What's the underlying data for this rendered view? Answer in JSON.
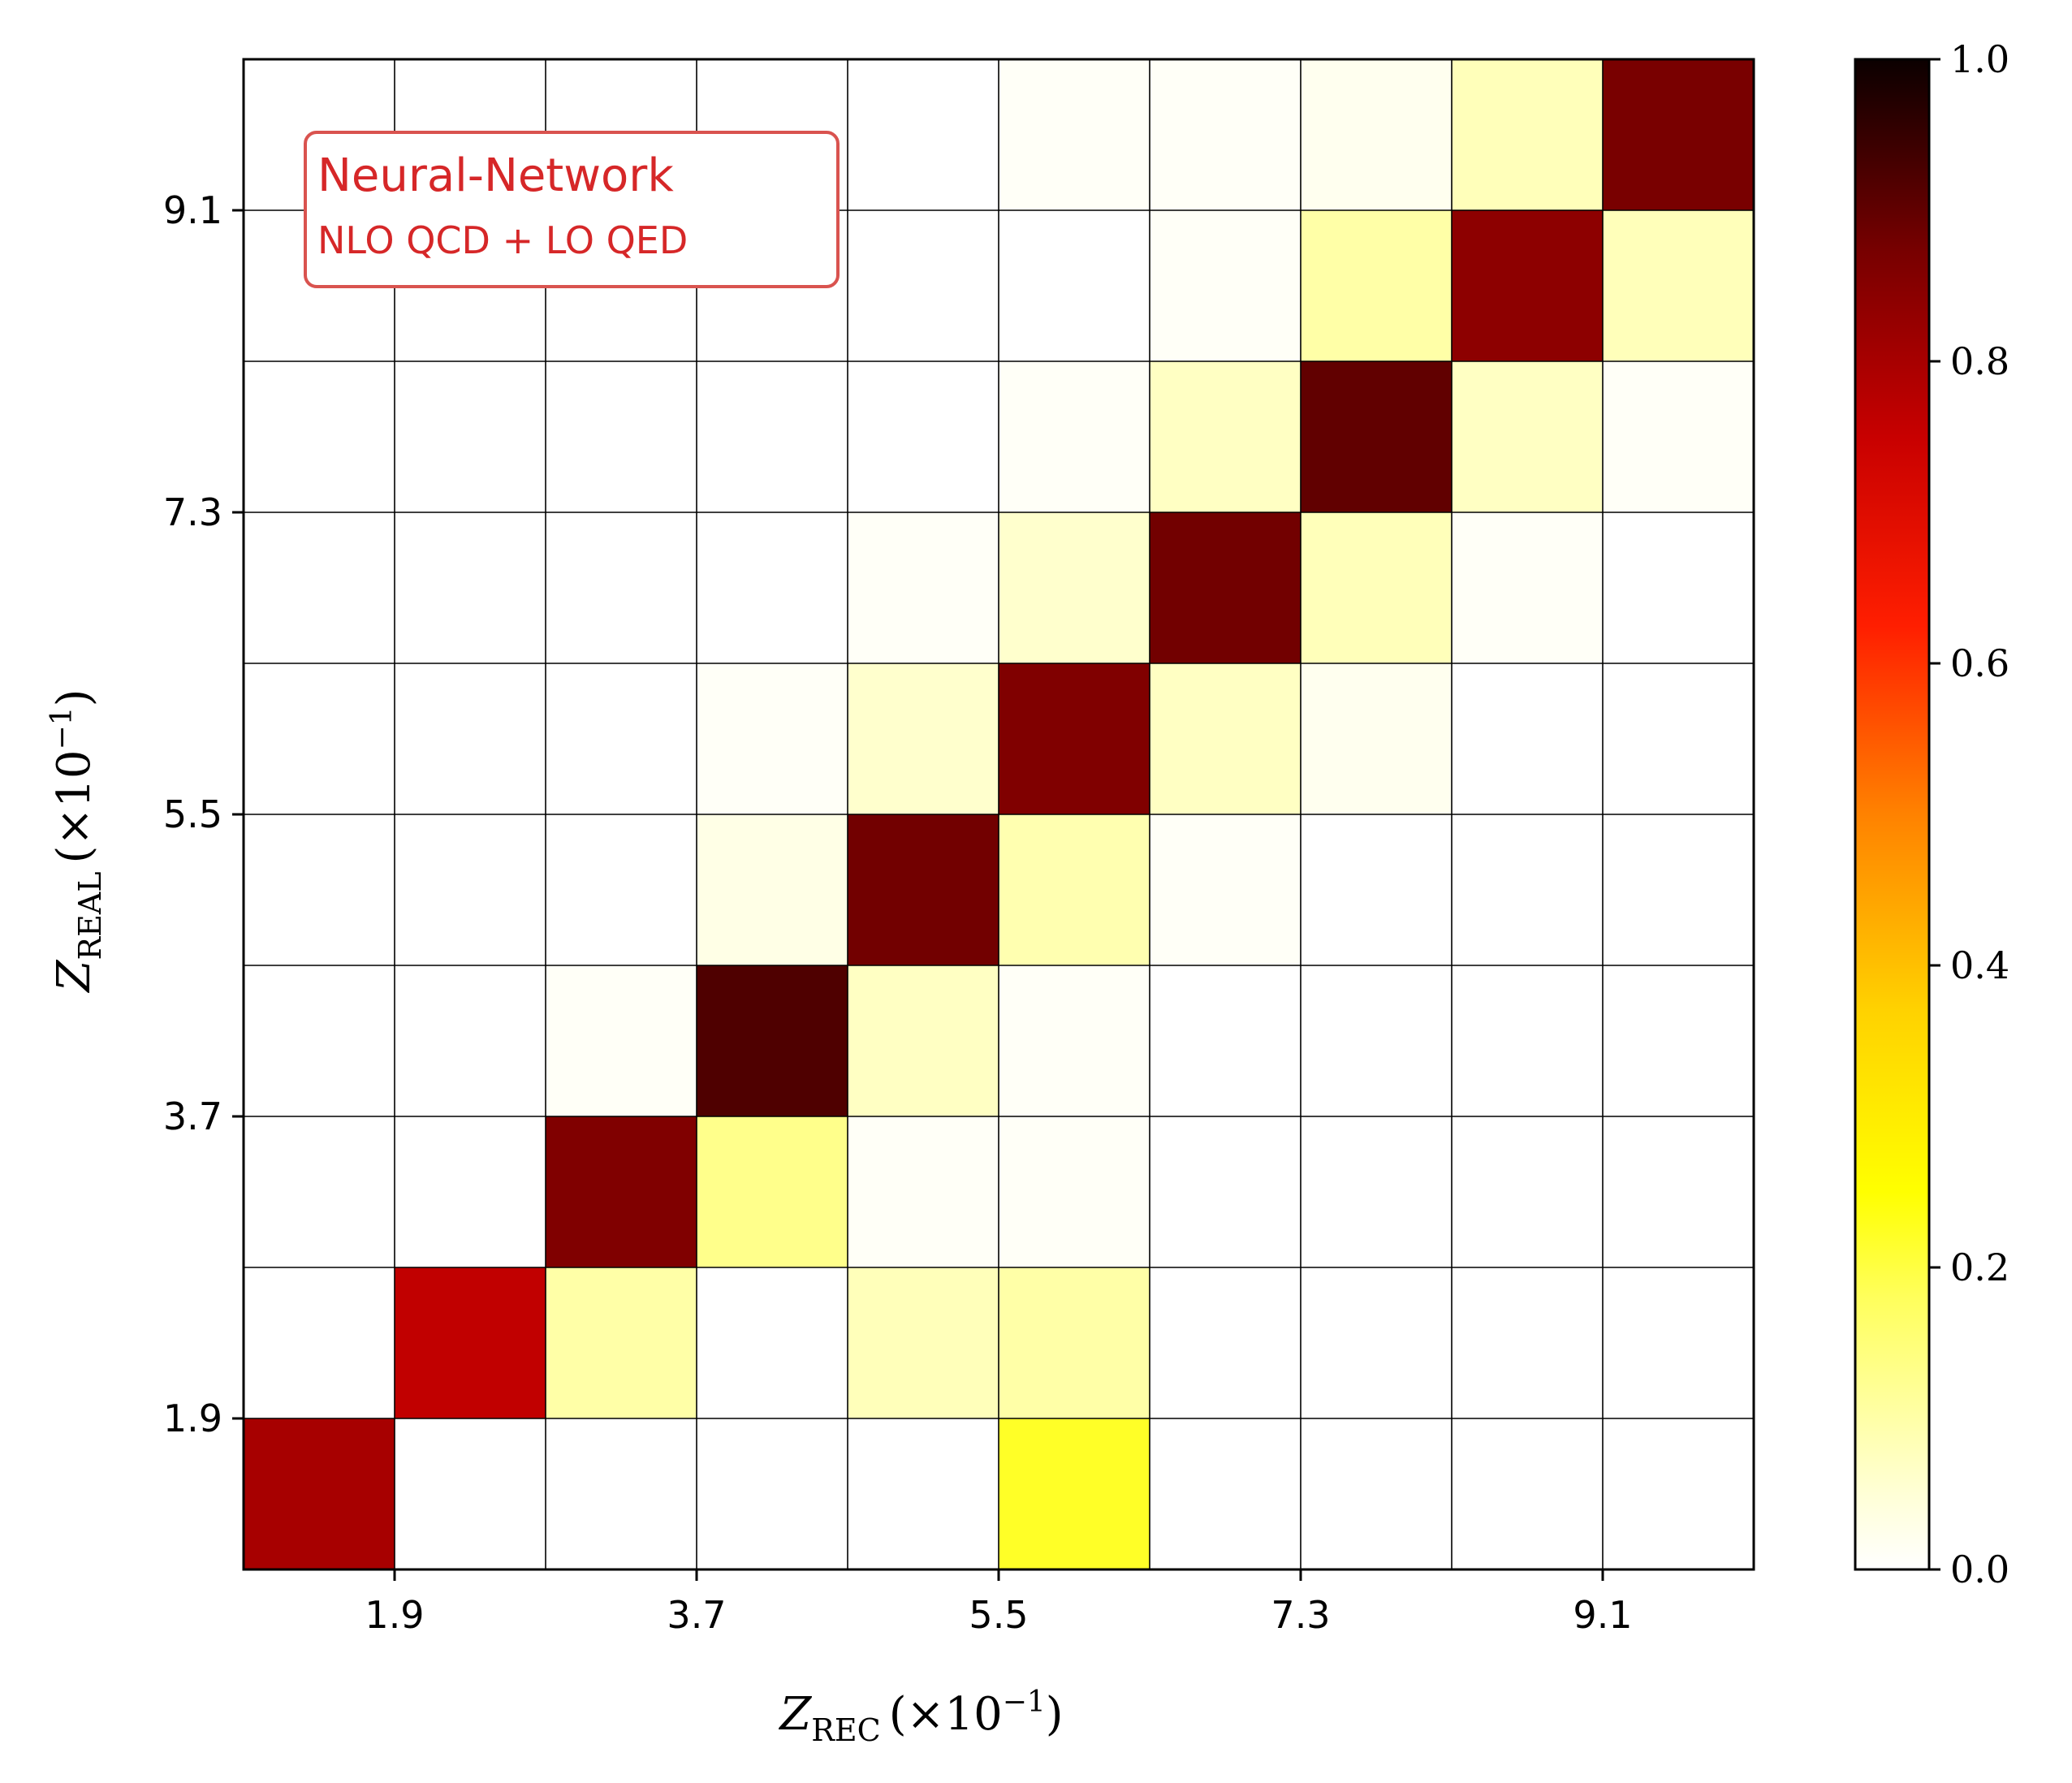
{
  "chart_data": {
    "type": "heatmap",
    "title": "",
    "xlabel": "Z_REC (×10^-1)",
    "ylabel": "Z_REAL (×10^-1)",
    "xlabel_parts": {
      "var": "Z",
      "sub": "REC",
      "suffix": "(×10",
      "exp": "−1",
      "close": ")"
    },
    "ylabel_parts": {
      "var": "Z",
      "sub": "REAL",
      "suffix": "(×10",
      "exp": "−1",
      "close": ")"
    },
    "x_bin_edges": [
      1.0,
      1.9,
      2.8,
      3.7,
      4.6,
      5.5,
      6.4,
      7.3,
      8.2,
      9.1,
      10.0
    ],
    "y_bin_edges": [
      1.0,
      1.9,
      2.8,
      3.7,
      4.6,
      5.5,
      6.4,
      7.3,
      8.2,
      9.1,
      10.0
    ],
    "x_tick_labels": [
      "1.9",
      "3.7",
      "5.5",
      "7.3",
      "9.1"
    ],
    "y_tick_labels": [
      "1.9",
      "3.7",
      "5.5",
      "7.3",
      "9.1"
    ],
    "x_tick_values": [
      1.9,
      3.7,
      5.5,
      7.3,
      9.1
    ],
    "y_tick_values": [
      1.9,
      3.7,
      5.5,
      7.3,
      9.1
    ],
    "matrix_row_order": "top-to-bottom (highest Z_REAL bin first)",
    "matrix": [
      [
        0.0,
        0.0,
        0.0,
        0.0,
        0.0,
        0.01,
        0.01,
        0.02,
        0.08,
        0.87
      ],
      [
        0.0,
        0.0,
        0.0,
        0.0,
        0.0,
        0.0,
        0.01,
        0.1,
        0.84,
        0.08
      ],
      [
        0.0,
        0.0,
        0.0,
        0.0,
        0.0,
        0.01,
        0.07,
        0.9,
        0.07,
        0.01
      ],
      [
        0.0,
        0.0,
        0.0,
        0.0,
        0.01,
        0.06,
        0.88,
        0.08,
        0.01,
        0.0
      ],
      [
        0.0,
        0.0,
        0.0,
        0.01,
        0.06,
        0.86,
        0.07,
        0.02,
        0.0,
        0.0
      ],
      [
        0.0,
        0.0,
        0.0,
        0.03,
        0.88,
        0.09,
        0.01,
        0.0,
        0.0,
        0.0
      ],
      [
        0.0,
        0.0,
        0.01,
        0.92,
        0.07,
        0.01,
        0.0,
        0.0,
        0.0,
        0.0
      ],
      [
        0.0,
        0.0,
        0.86,
        0.13,
        0.01,
        0.01,
        0.0,
        0.0,
        0.0,
        0.0
      ],
      [
        0.0,
        0.76,
        0.1,
        0.0,
        0.08,
        0.1,
        0.0,
        0.0,
        0.0,
        0.0
      ],
      [
        0.8,
        0.0,
        0.0,
        0.0,
        0.0,
        0.22,
        0.0,
        0.0,
        0.0,
        0.0
      ]
    ],
    "colormap": "hot_r",
    "colorbar": {
      "range": [
        0.0,
        1.0
      ],
      "tick_values": [
        0.0,
        0.2,
        0.4,
        0.6,
        0.8,
        1.0
      ],
      "tick_labels": [
        "0.0",
        "0.2",
        "0.4",
        "0.6",
        "0.8",
        "1.0"
      ]
    },
    "grid": true,
    "legend_placement": "top-left",
    "annotation": {
      "title": "Neural-Network",
      "subtitle": "NLO QCD + LO QED",
      "color": "#d62728"
    }
  }
}
